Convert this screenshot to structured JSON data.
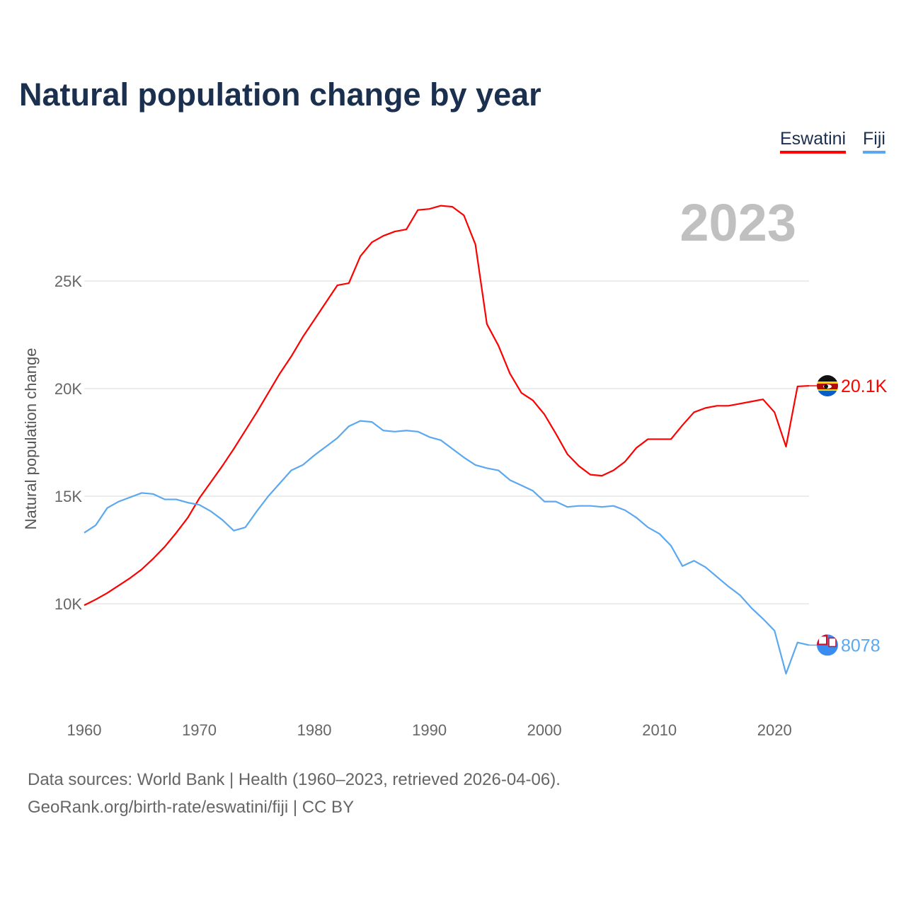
{
  "title": "Natural population change by year",
  "legend": [
    "Eswatini",
    "Fiji"
  ],
  "current_year": "2023",
  "footer": {
    "line1": "Data sources: World Bank | Health (1960–2023, retrieved 2026-04-06).",
    "line2": "GeoRank.org/birth-rate/eswatini/fiji | CC BY"
  },
  "chart_data": {
    "type": "line",
    "title": "Natural population change by year",
    "xlabel": "",
    "ylabel": "Natural population change",
    "xlim": [
      1960,
      2023
    ],
    "ylim": [
      5000,
      30000
    ],
    "x_ticks": [
      1960,
      1970,
      1980,
      1990,
      2000,
      2010,
      2020
    ],
    "y_ticks": [
      {
        "value": 10000,
        "label": "10K"
      },
      {
        "value": 15000,
        "label": "15K"
      },
      {
        "value": 20000,
        "label": "20K"
      },
      {
        "value": 25000,
        "label": "25K"
      }
    ],
    "grid": true,
    "legend_position": "top-right",
    "x_start": 1960,
    "series": [
      {
        "name": "Eswatini",
        "color": "#ff0000",
        "end_label": "20.1K",
        "values": [
          9930,
          10200,
          10500,
          10850,
          11200,
          11600,
          12100,
          12650,
          13300,
          14000,
          14900,
          15650,
          16400,
          17200,
          18050,
          18900,
          19800,
          20700,
          21500,
          22400,
          23200,
          24000,
          24800,
          24900,
          26150,
          26800,
          27100,
          27300,
          27400,
          28300,
          28350,
          28500,
          28450,
          28050,
          26700,
          23000,
          22000,
          20700,
          19800,
          19450,
          18800,
          17900,
          16950,
          16400,
          16000,
          15950,
          16200,
          16600,
          17250,
          17650,
          17650,
          17650,
          18300,
          18900,
          19100,
          19200,
          19200,
          19300,
          19400,
          19500,
          18900,
          17300,
          20100,
          20130
        ]
      },
      {
        "name": "Fiji",
        "color": "#5ba8f0",
        "end_label": "8078",
        "values": [
          13300,
          13650,
          14450,
          14750,
          14950,
          15150,
          15100,
          14850,
          14850,
          14700,
          14600,
          14300,
          13900,
          13400,
          13550,
          14300,
          15000,
          15600,
          16200,
          16450,
          16900,
          17300,
          17700,
          18250,
          18500,
          18450,
          18050,
          18000,
          18050,
          18000,
          17750,
          17600,
          17200,
          16800,
          16450,
          16300,
          16200,
          15750,
          15500,
          15250,
          14750,
          14750,
          14500,
          14550,
          14550,
          14500,
          14550,
          14350,
          14000,
          13550,
          13250,
          12700,
          11750,
          12000,
          11700,
          11250,
          10800,
          10400,
          9800,
          9300,
          8750,
          6750,
          8200,
          8078
        ]
      }
    ]
  }
}
